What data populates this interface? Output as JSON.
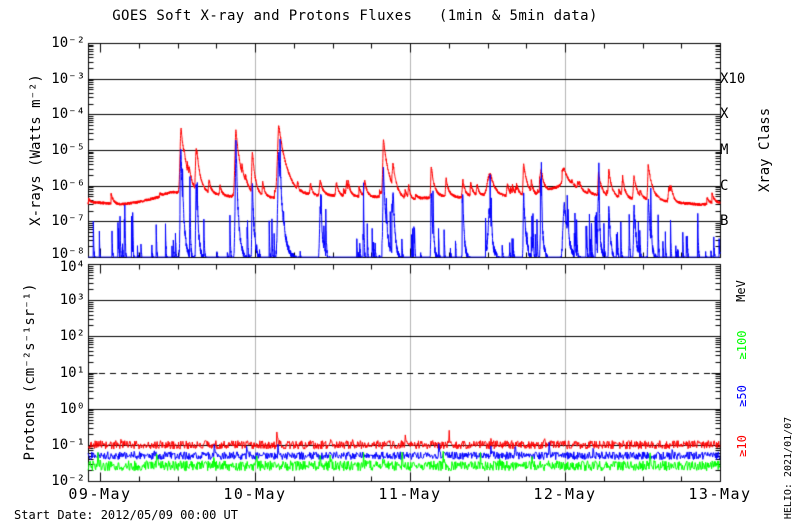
{
  "chart_data": {
    "type": "line",
    "title": "GOES Soft X-ray and Protons Fluxes   (1min & 5min data)",
    "seed": 20120509,
    "colors": {
      "background": "#ffffff",
      "frame": "#000000",
      "grid_day": "#b4b4b4",
      "grid_decade": "#000000"
    },
    "x_axis": {
      "start_hours": -1.86,
      "end_hours": 96,
      "hours_per_day": 24,
      "minor_tick_hours": 6,
      "day_labels": [
        "09-May",
        "10-May",
        "11-May",
        "12-May",
        "13-May"
      ]
    },
    "footer": {
      "start_date": "Start Date: 2012/05/09 00:00 UT"
    },
    "watermark": "HELIO: 2021/01/07",
    "panels": [
      {
        "id": "xray",
        "ylabel": "X-rays (Watts m⁻²)",
        "ylog_min": -8,
        "ylog_max": -2,
        "yticks": [
          "10⁻²",
          "10⁻³",
          "10⁻⁴",
          "10⁻⁵",
          "10⁻⁶",
          "10⁻⁷",
          "10⁻⁸"
        ],
        "grid_decades": [
          -3,
          -4,
          -5,
          -6,
          -7
        ],
        "right_axis": {
          "title": "Xray Class",
          "labels": [
            {
              "text": "X10",
              "log": -3
            },
            {
              "text": "X",
              "log": -4
            },
            {
              "text": "M",
              "log": -5
            },
            {
              "text": "C",
              "log": -6
            },
            {
              "text": "B",
              "log": -7
            }
          ]
        },
        "series": [
          {
            "name": "xray-long",
            "color": "#ff0000",
            "cadence_h": 0.02,
            "noise": 0.04,
            "micro_prob": 0.01,
            "micro_amp": [
              0.08,
              0.3
            ],
            "micro_decay": 0.95,
            "base": [
              [
                -2,
                -6.5
              ],
              [
                0,
                -6.48
              ],
              [
                3,
                -6.53
              ],
              [
                6,
                -6.46
              ],
              [
                9,
                -6.32
              ],
              [
                11,
                -6.18
              ],
              [
                12.4,
                -6.2
              ],
              [
                14,
                -6.3
              ],
              [
                16,
                -6.28
              ],
              [
                18,
                -6.25
              ],
              [
                20,
                -6.3
              ],
              [
                22,
                -6.28
              ],
              [
                24,
                -6.3
              ],
              [
                26,
                -6.33
              ],
              [
                28,
                -6.35
              ],
              [
                30,
                -6.38
              ],
              [
                32,
                -6.33
              ],
              [
                34,
                -6.3
              ],
              [
                36,
                -6.28
              ],
              [
                38,
                -6.32
              ],
              [
                40,
                -6.3
              ],
              [
                42,
                -6.33
              ],
              [
                44,
                -6.3
              ],
              [
                46,
                -6.38
              ],
              [
                48,
                -6.42
              ],
              [
                50,
                -6.36
              ],
              [
                52,
                -6.32
              ],
              [
                54,
                -6.3
              ],
              [
                56,
                -6.33
              ],
              [
                58,
                -6.3
              ],
              [
                60,
                -6.26
              ],
              [
                62,
                -6.32
              ],
              [
                64,
                -6.3
              ],
              [
                66,
                -6.28
              ],
              [
                68,
                -6.25
              ],
              [
                70,
                -6.1
              ],
              [
                71.5,
                -5.98
              ],
              [
                73,
                -6.06
              ],
              [
                75,
                -6.2
              ],
              [
                77,
                -6.28
              ],
              [
                79,
                -6.32
              ],
              [
                81,
                -6.36
              ],
              [
                83,
                -6.38
              ],
              [
                85,
                -6.4
              ],
              [
                87,
                -6.44
              ],
              [
                89,
                -6.48
              ],
              [
                91,
                -6.5
              ],
              [
                93,
                -6.53
              ],
              [
                96,
                -6.48
              ]
            ],
            "flares": [
              [
                12.55,
                -4.4,
                0.22,
                1.0
              ],
              [
                13.3,
                -5.6,
                0.15,
                0.4
              ],
              [
                14.9,
                -5.0,
                0.18,
                0.7
              ],
              [
                16.9,
                -5.85,
                0.15,
                0.4
              ],
              [
                18.6,
                -6.0,
                0.12,
                0.3
              ],
              [
                21.05,
                -4.45,
                0.22,
                0.9
              ],
              [
                23.6,
                -5.05,
                0.15,
                0.5
              ],
              [
                25.2,
                -5.9,
                0.12,
                0.35
              ],
              [
                27.7,
                -4.35,
                0.3,
                1.5
              ],
              [
                30.6,
                -5.9,
                0.18,
                0.45
              ],
              [
                32.6,
                -5.95,
                0.15,
                0.4
              ],
              [
                34.1,
                -5.85,
                0.18,
                0.5
              ],
              [
                36.6,
                -5.9,
                0.15,
                0.4
              ],
              [
                38.2,
                -5.95,
                0.12,
                0.35
              ],
              [
                41.0,
                -5.9,
                0.15,
                0.4
              ],
              [
                43.9,
                -4.75,
                0.16,
                1.0
              ],
              [
                45.4,
                -5.55,
                0.2,
                0.7
              ],
              [
                47.8,
                -6.05,
                0.12,
                0.3
              ],
              [
                51.3,
                -5.45,
                0.12,
                0.5
              ],
              [
                53.6,
                -5.8,
                0.12,
                0.4
              ],
              [
                56.2,
                -5.85,
                0.14,
                0.4
              ],
              [
                58.4,
                -6.0,
                0.12,
                0.3
              ],
              [
                60.3,
                -5.7,
                0.45,
                0.9
              ],
              [
                63.1,
                -5.95,
                0.15,
                0.35
              ],
              [
                65.6,
                -5.4,
                0.12,
                0.6
              ],
              [
                66.8,
                -5.85,
                0.1,
                0.3
              ],
              [
                68.3,
                -5.8,
                0.18,
                0.5
              ],
              [
                71.9,
                -5.65,
                0.35,
                1.1
              ],
              [
                74.0,
                -5.9,
                0.15,
                0.4
              ],
              [
                77.2,
                -5.62,
                0.12,
                0.5
              ],
              [
                78.8,
                -5.62,
                0.12,
                0.5
              ],
              [
                80.9,
                -5.92,
                0.12,
                0.4
              ],
              [
                82.7,
                -5.72,
                0.15,
                0.5
              ],
              [
                84.9,
                -5.42,
                0.12,
                0.7
              ],
              [
                88.1,
                -6.05,
                0.15,
                0.4
              ]
            ]
          },
          {
            "name": "xray-short",
            "color": "#0000ff",
            "cadence_h": 0.02,
            "noise": 0.1,
            "micro_prob": 0.03,
            "micro_amp": [
              0.2,
              1.3
            ],
            "micro_decay": 0.8,
            "base": [
              [
                -2,
                -8.12
              ],
              [
                96,
                -8.12
              ]
            ],
            "flares": [
              [
                12.55,
                -5.15,
                0.18,
                0.45
              ],
              [
                14.9,
                -5.95,
                0.12,
                0.35
              ],
              [
                21.05,
                -5.2,
                0.18,
                0.45
              ],
              [
                23.6,
                -5.9,
                0.12,
                0.3
              ],
              [
                27.7,
                -5.05,
                0.25,
                0.7
              ],
              [
                34.1,
                -6.6,
                0.15,
                0.4
              ],
              [
                43.9,
                -5.55,
                0.14,
                0.5
              ],
              [
                45.4,
                -6.3,
                0.15,
                0.35
              ],
              [
                51.3,
                -6.3,
                0.1,
                0.3
              ],
              [
                56.2,
                -6.7,
                0.12,
                0.3
              ],
              [
                60.3,
                -6.7,
                0.3,
                0.5
              ],
              [
                65.6,
                -6.25,
                0.1,
                0.4
              ],
              [
                68.3,
                -6.6,
                0.15,
                0.35
              ],
              [
                71.9,
                -6.5,
                0.3,
                0.7
              ],
              [
                77.2,
                -6.55,
                0.1,
                0.3
              ],
              [
                78.8,
                -6.55,
                0.1,
                0.3
              ],
              [
                82.7,
                -6.6,
                0.12,
                0.35
              ],
              [
                84.9,
                -6.35,
                0.1,
                0.4
              ]
            ]
          }
        ]
      },
      {
        "id": "protons",
        "ylabel": "Protons (cm⁻²s⁻¹sr⁻¹)",
        "ylog_min": -2,
        "ylog_max": 4,
        "yticks": [
          "10⁴",
          "10³",
          "10²",
          "10¹",
          "10⁰",
          "10⁻¹",
          "10⁻²"
        ],
        "grid_decades": [
          3,
          2,
          0,
          -1
        ],
        "threshold": {
          "log": 1,
          "style": "dashed"
        },
        "right_axis": {
          "title": "MeV",
          "labels": [
            {
              "text": "≥100",
              "color": "#00ff00"
            },
            {
              "text": "≥50",
              "color": "#0000ff"
            },
            {
              "text": "≥10",
              "color": "#ff0000"
            }
          ]
        },
        "series": [
          {
            "name": "p-ge10",
            "color": "#ff0000",
            "cadence_h": 0.085,
            "noise": 0.12,
            "micro_prob": 0.01,
            "micro_amp": [
              0.1,
              0.35
            ],
            "micro_decay": 0.5,
            "base": [
              [
                -2,
                -1.0
              ],
              [
                96,
                -1.0
              ]
            ],
            "flares": []
          },
          {
            "name": "p-ge50",
            "color": "#0000ff",
            "cadence_h": 0.085,
            "noise": 0.11,
            "micro_prob": 0.008,
            "micro_amp": [
              0.1,
              0.3
            ],
            "micro_decay": 0.5,
            "base": [
              [
                -2,
                -1.3
              ],
              [
                96,
                -1.3
              ]
            ],
            "flares": []
          },
          {
            "name": "p-ge100",
            "color": "#00ff00",
            "cadence_h": 0.085,
            "noise": 0.14,
            "micro_prob": 0.012,
            "micro_amp": [
              0.1,
              0.35
            ],
            "micro_decay": 0.5,
            "base": [
              [
                -2,
                -1.58
              ],
              [
                96,
                -1.58
              ]
            ],
            "flares": []
          }
        ]
      }
    ]
  }
}
